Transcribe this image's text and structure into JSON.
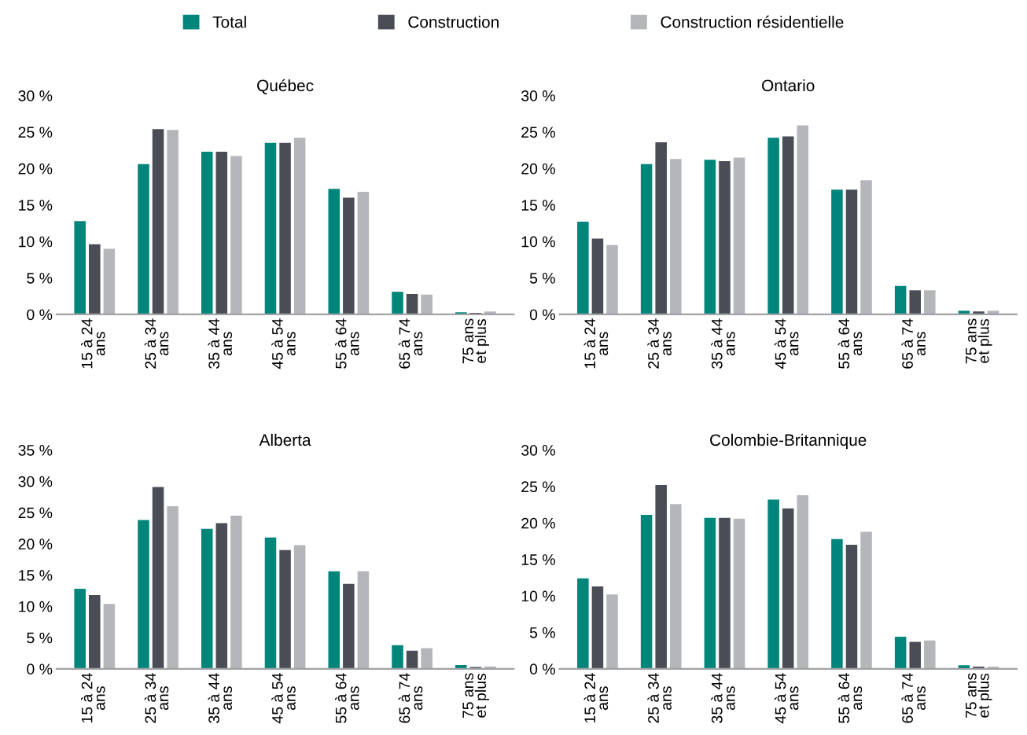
{
  "chart_data": [
    {
      "type": "bar",
      "title": "Québec",
      "legend": "top",
      "categories": [
        "15 à 24\nans",
        "25 à 34\nans",
        "35 à 44\nans",
        "45 à 54\nans",
        "55 à 64\nans",
        "65 à 74\nans",
        "75 ans\net plus"
      ],
      "ylim": [
        0,
        30
      ],
      "yticks": [
        {
          "value": 0,
          "label": "0 %"
        },
        {
          "value": 5,
          "label": "5 %"
        },
        {
          "value": 10,
          "label": "10 %"
        },
        {
          "value": 15,
          "label": "15 %"
        },
        {
          "value": 20,
          "label": "20 %"
        },
        {
          "value": 25,
          "label": "25 %"
        },
        {
          "value": 30,
          "label": "30 %"
        }
      ],
      "series": [
        {
          "name": "Total",
          "color": "#00857a",
          "values": [
            12.8,
            20.6,
            22.3,
            23.5,
            17.2,
            3.1,
            0.3
          ]
        },
        {
          "name": "Construction",
          "color": "#4a4d55",
          "values": [
            9.6,
            25.4,
            22.3,
            23.5,
            16.0,
            2.8,
            0.2
          ]
        },
        {
          "name": "Construction résidentielle",
          "color": "#b5b6ba",
          "values": [
            9.0,
            25.3,
            21.7,
            24.2,
            16.8,
            2.7,
            0.4
          ]
        }
      ]
    },
    {
      "type": "bar",
      "title": "Ontario",
      "categories": [
        "15 à 24\nans",
        "25 à 34\nans",
        "35 à 44\nans",
        "45 à 54\nans",
        "55 à 64\nans",
        "65 à 74\nans",
        "75 ans\net plus"
      ],
      "ylim": [
        0,
        30
      ],
      "yticks": [
        {
          "value": 0,
          "label": "0 %"
        },
        {
          "value": 5,
          "label": "5 %"
        },
        {
          "value": 10,
          "label": "10 %"
        },
        {
          "value": 15,
          "label": "15 %"
        },
        {
          "value": 20,
          "label": "20 %"
        },
        {
          "value": 25,
          "label": "25 %"
        },
        {
          "value": 30,
          "label": "30 %"
        }
      ],
      "series": [
        {
          "color": "#00857a",
          "values": [
            12.7,
            20.6,
            21.2,
            24.2,
            17.1,
            3.9,
            0.5
          ]
        },
        {
          "color": "#4a4d55",
          "values": [
            10.4,
            23.6,
            21.0,
            24.4,
            17.1,
            3.3,
            0.4
          ]
        },
        {
          "color": "#b5b6ba",
          "values": [
            9.5,
            21.3,
            21.5,
            25.9,
            18.4,
            3.3,
            0.5
          ]
        }
      ]
    },
    {
      "type": "bar",
      "title": "Alberta",
      "categories": [
        "15 à 24\nans",
        "25 à 34\nans",
        "35 à 44\nans",
        "45 à 54\nans",
        "55 à 64\nans",
        "65 à 74\nans",
        "75 ans\net plus"
      ],
      "ylim": [
        0,
        35
      ],
      "yticks": [
        {
          "value": 0,
          "label": "0 %"
        },
        {
          "value": 5,
          "label": "5 %"
        },
        {
          "value": 10,
          "label": "10 %"
        },
        {
          "value": 15,
          "label": "15 %"
        },
        {
          "value": 20,
          "label": "20 %"
        },
        {
          "value": 25,
          "label": "25 %"
        },
        {
          "value": 30,
          "label": "30 %"
        },
        {
          "value": 35,
          "label": "35 %"
        }
      ],
      "series": [
        {
          "color": "#00857a",
          "values": [
            12.8,
            23.8,
            22.4,
            21.0,
            15.6,
            3.8,
            0.6
          ]
        },
        {
          "color": "#4a4d55",
          "values": [
            11.8,
            29.1,
            23.3,
            19.0,
            13.6,
            2.9,
            0.3
          ]
        },
        {
          "color": "#b5b6ba",
          "values": [
            10.4,
            26.0,
            24.5,
            19.8,
            15.6,
            3.3,
            0.4
          ]
        }
      ]
    },
    {
      "type": "bar",
      "title": "Colombie-Britannique",
      "categories": [
        "15 à 24\nans",
        "25 à 34\nans",
        "35 à 44\nans",
        "45 à 54\nans",
        "55 à 64\nans",
        "65 à 74\nans",
        "75 ans\net plus"
      ],
      "ylim": [
        0,
        30
      ],
      "yticks": [
        {
          "value": 0,
          "label": "0 %"
        },
        {
          "value": 5,
          "label": "5 %"
        },
        {
          "value": 10,
          "label": "10 %"
        },
        {
          "value": 15,
          "label": "15 %"
        },
        {
          "value": 20,
          "label": "20 %"
        },
        {
          "value": 25,
          "label": "25 %"
        },
        {
          "value": 30,
          "label": "30 %"
        }
      ],
      "series": [
        {
          "color": "#00857a",
          "values": [
            12.4,
            21.1,
            20.7,
            23.2,
            17.8,
            4.4,
            0.5
          ]
        },
        {
          "color": "#4a4d55",
          "values": [
            11.3,
            25.2,
            20.7,
            22.0,
            17.0,
            3.7,
            0.3
          ]
        },
        {
          "color": "#b5b6ba",
          "values": [
            10.2,
            22.6,
            20.6,
            23.8,
            18.8,
            3.9,
            0.3
          ]
        }
      ]
    }
  ]
}
